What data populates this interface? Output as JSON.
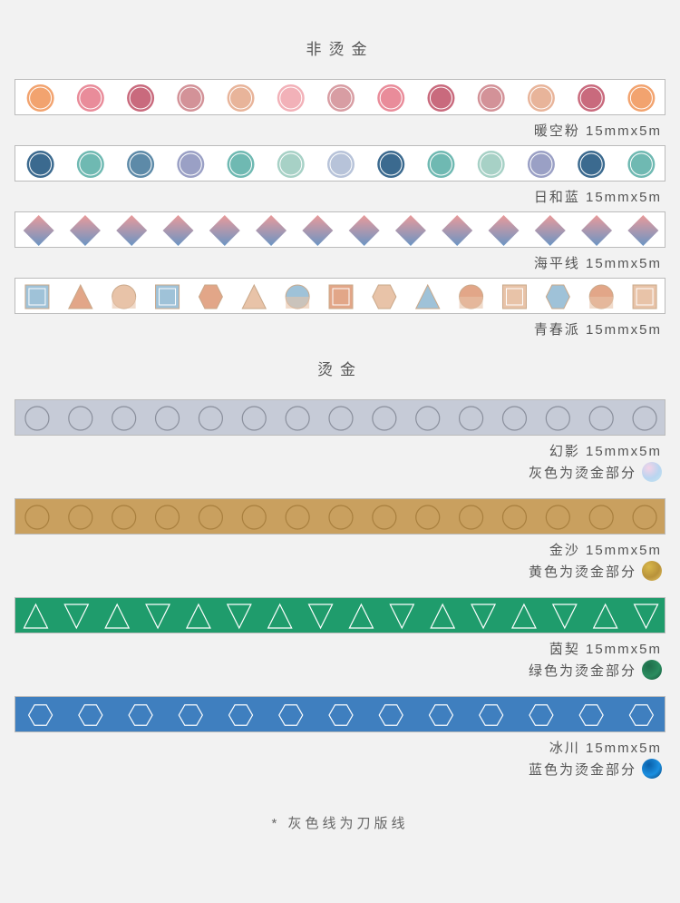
{
  "sections": {
    "plain_title": "非烫金",
    "foil_title": "烫金"
  },
  "footnote": "* 灰色线为刀版线",
  "tapes_plain": [
    {
      "id": "warm-pink",
      "label": "暖空粉 15mmx5m",
      "type": "circles-filled-ring",
      "bg": "#ffffff",
      "circle_colors": [
        "#f2a36f",
        "#e98c9a",
        "#c96a7d",
        "#d39298",
        "#e8b49a",
        "#f2b1b8",
        "#d89da3",
        "#e98c9a",
        "#c96a7d",
        "#d39298",
        "#e8b49a",
        "#c96a7d",
        "#f2a36f"
      ],
      "ring": "#ffffff"
    },
    {
      "id": "day-blue",
      "label": "日和蓝 15mmx5m",
      "type": "circles-filled-ring",
      "bg": "#ffffff",
      "circle_colors": [
        "#3b6a8f",
        "#6fb9b2",
        "#5d8aa8",
        "#9aa0c5",
        "#6fb9b2",
        "#a7d1c6",
        "#b7c3d9",
        "#3b6a8f",
        "#6fb9b2",
        "#a7d1c6",
        "#9aa0c5",
        "#3b6a8f",
        "#6fb9b2"
      ],
      "ring": "#ffffff"
    },
    {
      "id": "sea-horizon",
      "label": "海平线 15mmx5m",
      "type": "diamonds-gradient",
      "bg": "#ffffff",
      "top_color": "#e99a9a",
      "bottom_color": "#6b95c4"
    },
    {
      "id": "youth",
      "label": "青春派 15mmx5m",
      "type": "mixed-shapes",
      "bg": "#ffffff",
      "accent1": "#e2a688",
      "accent2": "#9fc2d8",
      "accent3": "#e8c3a8",
      "outline": "#c9a88a"
    }
  ],
  "tapes_foil": [
    {
      "id": "phantom",
      "label": "幻影 15mmx5m",
      "sublabel": "灰色为烫金部分",
      "type": "circles-outline",
      "bg": "#c6cbd7",
      "outline": "#8a8f9c",
      "swatch_gradient": [
        "#f5d3e8",
        "#b9d5f0",
        "#c3e6f0"
      ]
    },
    {
      "id": "golden-sand",
      "label": "金沙 15mmx5m",
      "sublabel": "黄色为烫金部分",
      "type": "circles-outline",
      "bg": "#c9a05f",
      "outline": "#a87f3e",
      "swatch_gradient": [
        "#d9b84a",
        "#b8923a",
        "#e6c768"
      ]
    },
    {
      "id": "green",
      "label": "茵契 15mmx5m",
      "sublabel": "绿色为烫金部分",
      "type": "triangles-outline",
      "bg": "#1f9c6c",
      "outline": "#ffffff",
      "swatch_gradient": [
        "#1f6c4a",
        "#2a8c5f",
        "#155238"
      ]
    },
    {
      "id": "glacier",
      "label": "冰川 15mmx5m",
      "sublabel": "蓝色为烫金部分",
      "type": "hexagons-outline",
      "bg": "#3f7fbf",
      "outline": "#ffffff",
      "swatch_gradient": [
        "#0a5fa8",
        "#1b8fe0",
        "#083d6e"
      ]
    }
  ]
}
